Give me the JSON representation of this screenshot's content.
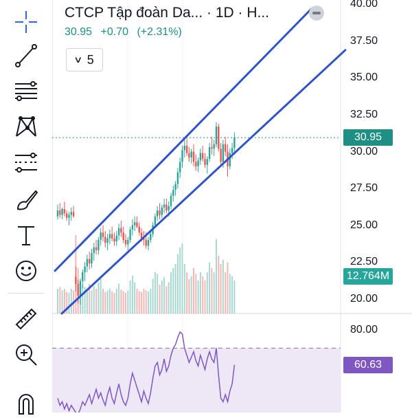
{
  "legend": {
    "title": "CTCP Tập đoàn Da... · 1D · H...",
    "last": "30.95",
    "change": "+0.70",
    "change_pct": "(+2.31%)",
    "indicators_count": "5"
  },
  "price_axis": {
    "labels": [
      "40.00",
      "37.50",
      "35.00",
      "32.50",
      "30.00",
      "27.50",
      "25.00",
      "22.50",
      "20.00"
    ],
    "current_price_tag": "30.95",
    "volume_tag": "12.764M"
  },
  "rsi_axis": {
    "labels": [
      "80.00"
    ],
    "value_tag": "60.63"
  },
  "toolbar": {
    "tools": [
      "crosshair",
      "trend-line",
      "fib-retracement",
      "xabcd-pattern",
      "forecast",
      "brush",
      "text",
      "emoji",
      "ruler",
      "zoom-in",
      "magnet"
    ]
  },
  "colors": {
    "up": "#26a69a",
    "down": "#ef5350",
    "channel": "#2e54c7",
    "rsi": "#7e57c2",
    "rsi_band": "#ede7f6",
    "price_tag": "#1e8f82",
    "volume_tag": "#26a69a",
    "rsi_tag": "#7e57c2"
  },
  "chart_data": {
    "type": "candlestick",
    "price_range": [
      19.0,
      40.3
    ],
    "candles": [
      [
        25.6,
        26.4,
        25.4,
        26.0
      ],
      [
        26.0,
        26.5,
        25.5,
        25.7
      ],
      [
        25.7,
        26.2,
        25.4,
        26.1
      ],
      [
        26.1,
        26.6,
        25.6,
        25.8
      ],
      [
        25.8,
        26.0,
        25.3,
        25.5
      ],
      [
        25.5,
        25.9,
        25.0,
        25.7
      ],
      [
        25.7,
        26.2,
        25.3,
        25.9
      ],
      [
        25.9,
        26.3,
        25.5,
        25.6
      ],
      [
        21.5,
        22.2,
        20.5,
        21.0
      ],
      [
        21.0,
        21.3,
        19.7,
        20.2
      ],
      [
        20.2,
        21.4,
        19.6,
        21.2
      ],
      [
        21.2,
        22.0,
        20.7,
        21.8
      ],
      [
        21.8,
        22.5,
        21.2,
        22.2
      ],
      [
        22.2,
        23.0,
        21.8,
        22.7
      ],
      [
        22.7,
        23.2,
        22.0,
        22.4
      ],
      [
        22.4,
        23.4,
        22.1,
        23.1
      ],
      [
        23.1,
        23.8,
        22.6,
        23.5
      ],
      [
        23.5,
        24.0,
        23.0,
        23.3
      ],
      [
        23.3,
        24.2,
        23.0,
        24.0
      ],
      [
        24.0,
        24.8,
        23.6,
        24.5
      ],
      [
        24.5,
        25.0,
        23.9,
        24.2
      ],
      [
        24.2,
        24.6,
        23.5,
        23.8
      ],
      [
        23.8,
        24.4,
        23.3,
        24.1
      ],
      [
        24.1,
        24.7,
        23.7,
        24.4
      ],
      [
        24.4,
        24.9,
        23.9,
        24.1
      ],
      [
        24.1,
        24.5,
        23.6,
        23.9
      ],
      [
        23.9,
        24.6,
        23.6,
        24.3
      ],
      [
        24.3,
        25.1,
        24.0,
        24.8
      ],
      [
        24.8,
        25.3,
        24.2,
        24.5
      ],
      [
        24.5,
        24.9,
        23.8,
        24.0
      ],
      [
        24.0,
        24.4,
        23.5,
        23.7
      ],
      [
        23.7,
        24.2,
        23.3,
        24.0
      ],
      [
        24.0,
        24.9,
        23.8,
        24.7
      ],
      [
        24.7,
        25.4,
        24.3,
        25.0
      ],
      [
        25.0,
        25.6,
        24.6,
        25.2
      ],
      [
        25.2,
        25.6,
        24.8,
        24.9
      ],
      [
        24.9,
        25.2,
        24.3,
        24.5
      ],
      [
        24.5,
        24.8,
        23.9,
        24.1
      ],
      [
        24.1,
        24.6,
        23.6,
        24.0
      ],
      [
        24.0,
        24.5,
        23.4,
        23.6
      ],
      [
        23.6,
        24.2,
        23.3,
        24.0
      ],
      [
        24.0,
        24.6,
        23.8,
        24.4
      ],
      [
        24.4,
        25.2,
        24.2,
        25.0
      ],
      [
        25.0,
        25.8,
        24.8,
        25.6
      ],
      [
        25.6,
        26.3,
        25.3,
        26.0
      ],
      [
        26.0,
        26.5,
        25.4,
        25.7
      ],
      [
        25.7,
        26.4,
        25.5,
        26.2
      ],
      [
        26.2,
        26.8,
        25.8,
        26.4
      ],
      [
        26.4,
        26.8,
        25.8,
        26.0
      ],
      [
        26.0,
        26.6,
        25.6,
        26.3
      ],
      [
        26.3,
        27.2,
        26.1,
        27.0
      ],
      [
        27.0,
        27.7,
        26.6,
        27.4
      ],
      [
        27.4,
        28.0,
        27.0,
        27.8
      ],
      [
        27.8,
        28.9,
        27.5,
        28.6
      ],
      [
        28.6,
        29.6,
        28.2,
        29.3
      ],
      [
        29.3,
        30.4,
        28.9,
        30.1
      ],
      [
        30.1,
        30.8,
        29.6,
        30.4
      ],
      [
        30.4,
        30.9,
        29.7,
        29.9
      ],
      [
        29.9,
        30.3,
        29.3,
        29.6
      ],
      [
        29.6,
        30.2,
        29.2,
        30.0
      ],
      [
        30.0,
        30.5,
        29.0,
        29.3
      ],
      [
        29.3,
        29.8,
        28.7,
        29.0
      ],
      [
        29.0,
        29.6,
        28.6,
        29.4
      ],
      [
        29.4,
        30.2,
        29.1,
        29.9
      ],
      [
        29.9,
        30.4,
        29.3,
        29.5
      ],
      [
        29.5,
        29.9,
        28.9,
        29.1
      ],
      [
        29.1,
        29.7,
        28.5,
        29.5
      ],
      [
        29.5,
        30.6,
        29.3,
        30.3
      ],
      [
        30.3,
        31.0,
        29.8,
        30.2
      ],
      [
        30.2,
        30.8,
        29.7,
        30.5
      ],
      [
        30.5,
        32.0,
        30.3,
        31.7
      ],
      [
        31.7,
        31.9,
        30.0,
        30.2
      ],
      [
        30.2,
        30.6,
        29.0,
        29.3
      ],
      [
        29.3,
        30.8,
        28.9,
        30.5
      ],
      [
        30.5,
        31.0,
        29.7,
        30.0
      ],
      [
        30.0,
        30.5,
        28.3,
        29.0
      ],
      [
        29.0,
        30.2,
        28.8,
        29.9
      ],
      [
        29.9,
        30.6,
        29.5,
        30.25
      ],
      [
        30.25,
        31.3,
        30.0,
        30.95
      ]
    ],
    "volume": [
      0.3,
      0.32,
      0.28,
      0.3,
      0.26,
      0.25,
      0.3,
      0.28,
      0.95,
      0.55,
      0.4,
      0.35,
      0.32,
      0.3,
      0.36,
      0.28,
      0.33,
      0.3,
      0.38,
      0.42,
      0.3,
      0.26,
      0.28,
      0.3,
      0.27,
      0.25,
      0.3,
      0.36,
      0.29,
      0.27,
      0.25,
      0.28,
      0.4,
      0.46,
      0.38,
      0.3,
      0.27,
      0.26,
      0.3,
      0.28,
      0.27,
      0.3,
      0.42,
      0.5,
      0.48,
      0.35,
      0.4,
      0.44,
      0.33,
      0.38,
      0.5,
      0.55,
      0.6,
      0.72,
      0.8,
      0.85,
      0.6,
      0.5,
      0.42,
      0.45,
      0.55,
      0.48,
      0.4,
      0.5,
      0.45,
      0.4,
      0.5,
      0.62,
      0.55,
      0.5,
      0.9,
      0.7,
      0.6,
      0.65,
      0.5,
      0.62,
      0.48,
      0.45,
      0.4
    ],
    "channel": {
      "upper": [
        [
          0,
          21.9
        ],
        [
          78,
          39.7
        ]
      ],
      "lower": [
        [
          0,
          19.0
        ],
        [
          93,
          36.9
        ]
      ]
    },
    "current_price": 30.95,
    "rsi": {
      "range": [
        34,
        84
      ],
      "upper_band": 70,
      "lower_band": 30,
      "values": [
        42,
        38,
        40,
        36,
        39,
        35,
        38,
        36,
        34,
        33,
        36,
        40,
        38,
        41,
        44,
        39,
        43,
        47,
        42,
        45,
        41,
        38,
        44,
        48,
        42,
        39,
        45,
        50,
        44,
        40,
        38,
        42,
        50,
        56,
        52,
        48,
        44,
        40,
        46,
        42,
        39,
        45,
        53,
        60,
        62,
        55,
        58,
        64,
        57,
        60,
        66,
        70,
        72,
        76,
        79,
        78,
        70,
        66,
        62,
        65,
        68,
        63,
        60,
        66,
        62,
        58,
        64,
        68,
        64,
        62,
        70,
        55,
        42,
        40,
        44,
        40,
        46,
        50,
        60.63
      ]
    }
  }
}
